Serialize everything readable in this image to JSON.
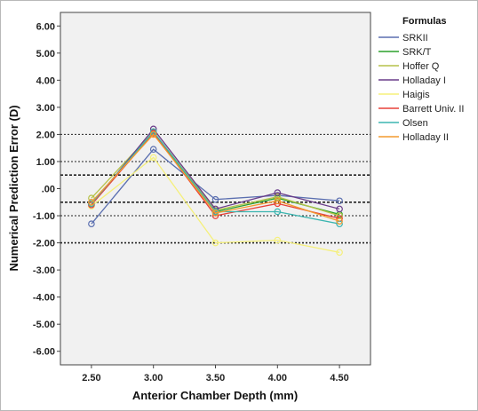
{
  "chart_data": {
    "type": "line",
    "xlabel": "Anterior Chamber Depth (mm)",
    "ylabel": "Numerical Prediction Error (D)",
    "x": [
      2.5,
      3.0,
      3.5,
      4.0,
      4.5
    ],
    "x_tick_labels": [
      "2.50",
      "3.00",
      "3.50",
      "4.00",
      "4.50"
    ],
    "ylim": [
      -6.5,
      6.5
    ],
    "y_ticks": [
      6,
      5,
      4,
      3,
      2,
      1,
      0,
      -1,
      -2,
      -3,
      -4,
      -5,
      -6
    ],
    "y_tick_labels": [
      "6.00",
      "5.00",
      "4.00",
      "3.00",
      "2.00",
      "1.00",
      ".00",
      "-1.00",
      "-2.00",
      "-3.00",
      "-4.00",
      "-5.00",
      "-6.00"
    ],
    "reference_lines": [
      2.0,
      1.0,
      0.5,
      -0.5,
      -1.0,
      -2.0
    ],
    "grid": false,
    "legend": {
      "title": "Formulas",
      "placement": "right"
    },
    "series": [
      {
        "name": "SRKII",
        "color": "#5b6fb0",
        "values": [
          -1.3,
          1.45,
          -0.4,
          -0.25,
          -0.45
        ]
      },
      {
        "name": "SRK/T",
        "color": "#2ca02c",
        "values": [
          -0.55,
          2.05,
          -0.85,
          -0.35,
          -0.95
        ]
      },
      {
        "name": "Hoffer Q",
        "color": "#b5c24a",
        "values": [
          -0.35,
          2.1,
          -0.8,
          -0.3,
          -1.0
        ]
      },
      {
        "name": "Holladay I",
        "color": "#6a3d8a",
        "values": [
          -0.6,
          2.2,
          -0.75,
          -0.15,
          -0.75
        ]
      },
      {
        "name": "Haigis",
        "color": "#f5f07a",
        "values": [
          -0.65,
          1.15,
          -2.0,
          -1.9,
          -2.35
        ]
      },
      {
        "name": "Barrett Univ. II",
        "color": "#e8413a",
        "values": [
          -0.6,
          2.05,
          -1.0,
          -0.55,
          -1.1
        ]
      },
      {
        "name": "Olsen",
        "color": "#3bb5b0",
        "values": [
          -0.55,
          2.1,
          -0.85,
          -0.85,
          -1.3
        ]
      },
      {
        "name": "Holladay II",
        "color": "#f39a2e",
        "values": [
          -0.5,
          2.0,
          -0.9,
          -0.45,
          -1.2
        ]
      }
    ]
  }
}
